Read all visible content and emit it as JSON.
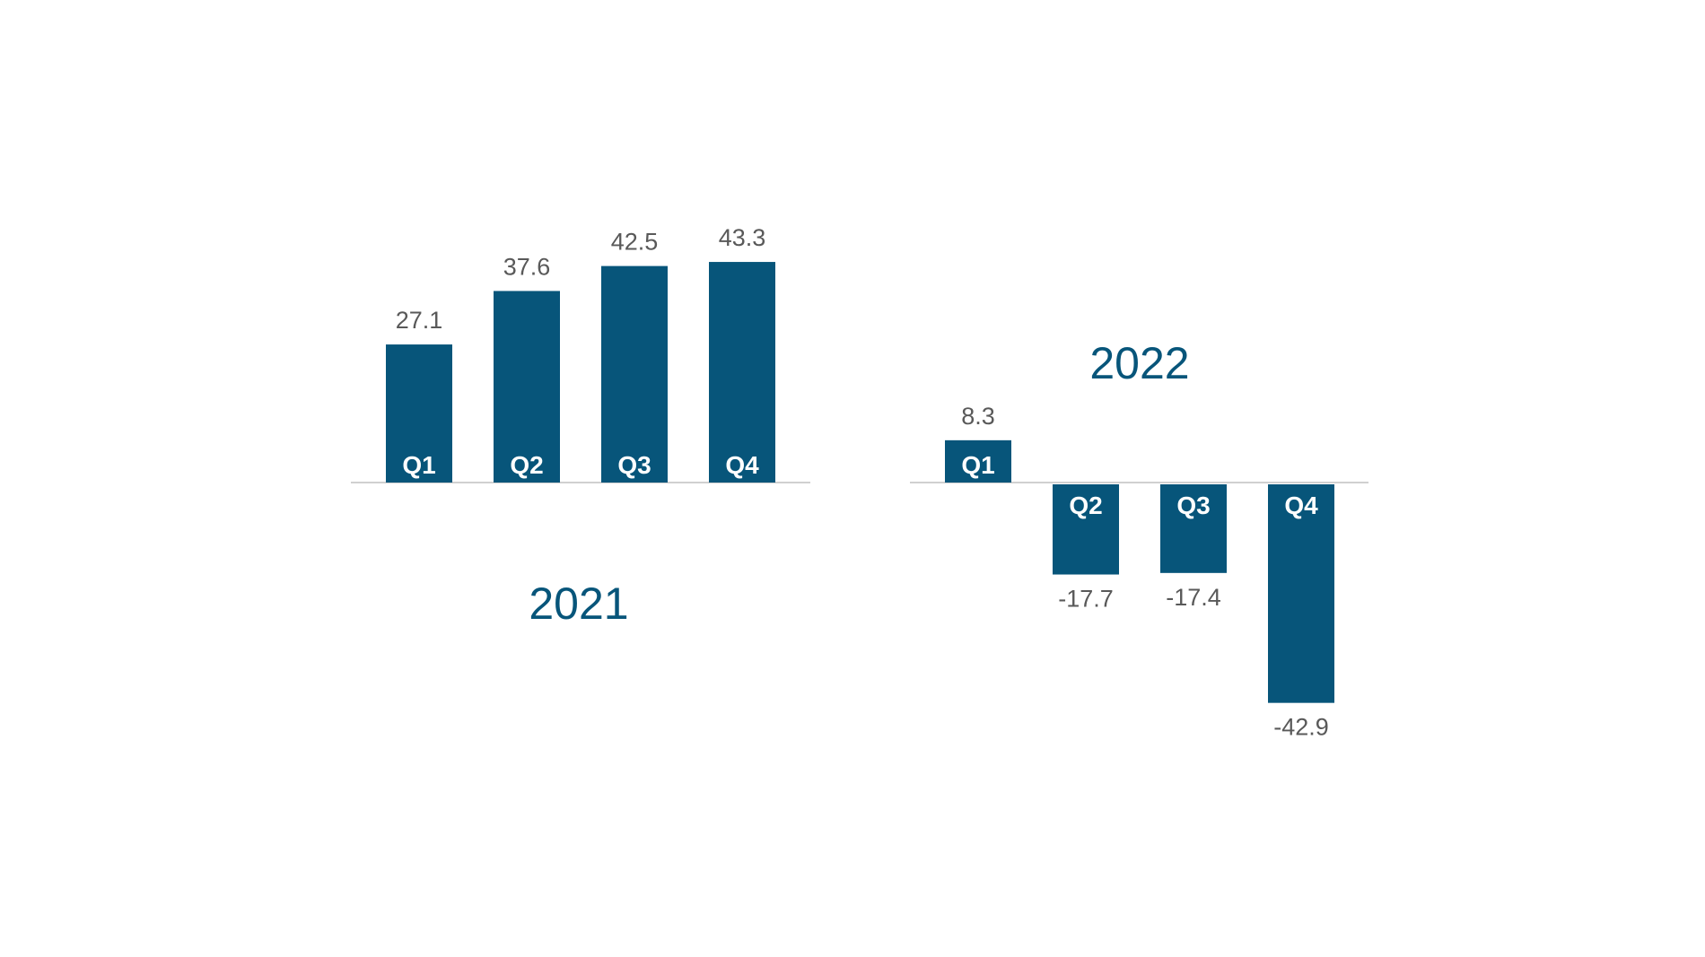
{
  "chart_data": [
    {
      "type": "bar",
      "title": "2021",
      "categories": [
        "Q1",
        "Q2",
        "Q3",
        "Q4"
      ],
      "values": [
        27.1,
        37.6,
        42.5,
        43.3
      ],
      "value_labels": [
        "27.1",
        "37.6",
        "42.5",
        "43.3"
      ],
      "xlabel": "",
      "ylabel": "",
      "grid": false,
      "bar_color": "#07557a",
      "baseline_color": "#d0d0d0",
      "title_color": "#07557a",
      "label_color": "#595959"
    },
    {
      "type": "bar",
      "title": "2022",
      "categories": [
        "Q1",
        "Q2",
        "Q3",
        "Q4"
      ],
      "values": [
        8.3,
        -17.7,
        -17.4,
        -42.9
      ],
      "value_labels": [
        "8.3",
        "-17.7",
        "-17.4",
        "-42.9"
      ],
      "xlabel": "",
      "ylabel": "",
      "grid": false,
      "bar_color": "#07557a",
      "baseline_color": "#d0d0d0",
      "title_color": "#07557a",
      "label_color": "#595959"
    }
  ]
}
